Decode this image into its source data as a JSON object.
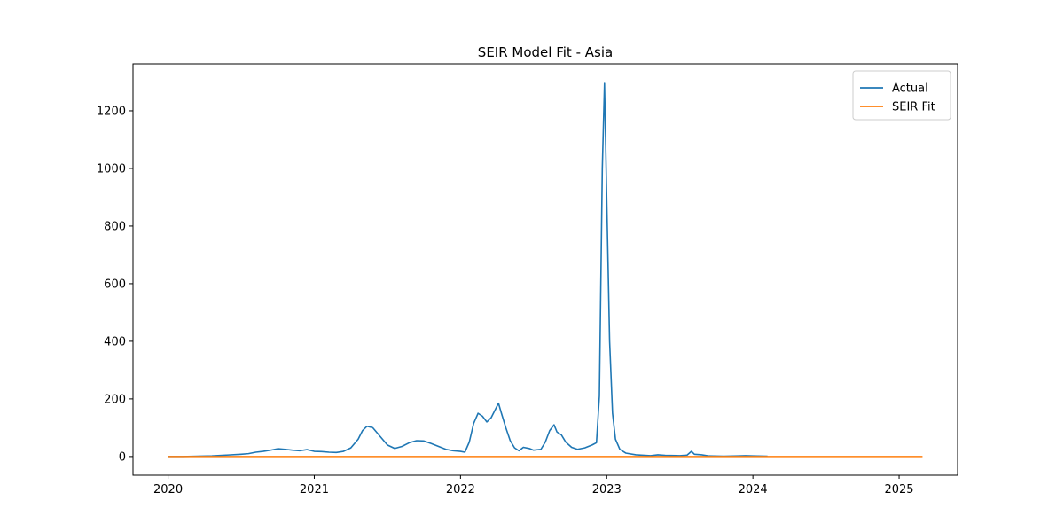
{
  "chart_data": {
    "type": "line",
    "title": "SEIR Model Fit - Asia",
    "xlabel": "",
    "ylabel": "",
    "xlim": [
      2019.76,
      2025.4
    ],
    "ylim": [
      -65,
      1363
    ],
    "x_ticks": [
      2020,
      2021,
      2022,
      2023,
      2024,
      2025
    ],
    "x_tick_labels": [
      "2020",
      "2021",
      "2022",
      "2023",
      "2024",
      "2025"
    ],
    "y_ticks": [
      0,
      200,
      400,
      600,
      800,
      1000,
      1200
    ],
    "y_tick_labels": [
      "0",
      "200",
      "400",
      "600",
      "800",
      "1000",
      "1200"
    ],
    "grid": false,
    "legend": {
      "position": "top-right",
      "entries": [
        "Actual",
        "SEIR Fit"
      ]
    },
    "series": [
      {
        "name": "Actual",
        "color": "#1f77b4",
        "points": [
          [
            2020.0,
            0
          ],
          [
            2020.1,
            0
          ],
          [
            2020.2,
            1
          ],
          [
            2020.3,
            2
          ],
          [
            2020.4,
            5
          ],
          [
            2020.5,
            8
          ],
          [
            2020.55,
            10
          ],
          [
            2020.6,
            15
          ],
          [
            2020.65,
            18
          ],
          [
            2020.7,
            22
          ],
          [
            2020.75,
            27
          ],
          [
            2020.8,
            25
          ],
          [
            2020.85,
            22
          ],
          [
            2020.9,
            20
          ],
          [
            2020.95,
            24
          ],
          [
            2021.0,
            18
          ],
          [
            2021.05,
            17
          ],
          [
            2021.1,
            15
          ],
          [
            2021.15,
            14
          ],
          [
            2021.2,
            18
          ],
          [
            2021.25,
            30
          ],
          [
            2021.3,
            60
          ],
          [
            2021.33,
            90
          ],
          [
            2021.36,
            105
          ],
          [
            2021.4,
            100
          ],
          [
            2021.45,
            70
          ],
          [
            2021.5,
            40
          ],
          [
            2021.55,
            28
          ],
          [
            2021.6,
            35
          ],
          [
            2021.65,
            48
          ],
          [
            2021.7,
            55
          ],
          [
            2021.75,
            54
          ],
          [
            2021.8,
            45
          ],
          [
            2021.85,
            35
          ],
          [
            2021.9,
            25
          ],
          [
            2021.95,
            20
          ],
          [
            2022.0,
            18
          ],
          [
            2022.03,
            15
          ],
          [
            2022.06,
            50
          ],
          [
            2022.09,
            115
          ],
          [
            2022.12,
            150
          ],
          [
            2022.15,
            140
          ],
          [
            2022.18,
            120
          ],
          [
            2022.21,
            135
          ],
          [
            2022.24,
            165
          ],
          [
            2022.26,
            185
          ],
          [
            2022.28,
            150
          ],
          [
            2022.31,
            100
          ],
          [
            2022.34,
            55
          ],
          [
            2022.37,
            30
          ],
          [
            2022.4,
            20
          ],
          [
            2022.43,
            32
          ],
          [
            2022.47,
            28
          ],
          [
            2022.5,
            22
          ],
          [
            2022.55,
            25
          ],
          [
            2022.58,
            50
          ],
          [
            2022.61,
            90
          ],
          [
            2022.64,
            110
          ],
          [
            2022.66,
            85
          ],
          [
            2022.69,
            75
          ],
          [
            2022.72,
            50
          ],
          [
            2022.76,
            32
          ],
          [
            2022.8,
            25
          ],
          [
            2022.85,
            30
          ],
          [
            2022.9,
            40
          ],
          [
            2022.93,
            48
          ],
          [
            2022.95,
            210
          ],
          [
            2022.97,
            1000
          ],
          [
            2022.985,
            1295
          ],
          [
            2023.0,
            900
          ],
          [
            2023.02,
            400
          ],
          [
            2023.04,
            150
          ],
          [
            2023.06,
            60
          ],
          [
            2023.09,
            25
          ],
          [
            2023.13,
            12
          ],
          [
            2023.2,
            6
          ],
          [
            2023.3,
            3
          ],
          [
            2023.35,
            6
          ],
          [
            2023.4,
            4
          ],
          [
            2023.5,
            3
          ],
          [
            2023.55,
            5
          ],
          [
            2023.58,
            18
          ],
          [
            2023.6,
            8
          ],
          [
            2023.65,
            6
          ],
          [
            2023.7,
            2
          ],
          [
            2023.8,
            1
          ],
          [
            2023.9,
            2
          ],
          [
            2023.95,
            3
          ],
          [
            2024.0,
            2
          ],
          [
            2024.1,
            1
          ]
        ]
      },
      {
        "name": "SEIR Fit",
        "color": "#ff7f0e",
        "points": [
          [
            2020.0,
            0
          ],
          [
            2025.16,
            0
          ]
        ]
      }
    ]
  }
}
